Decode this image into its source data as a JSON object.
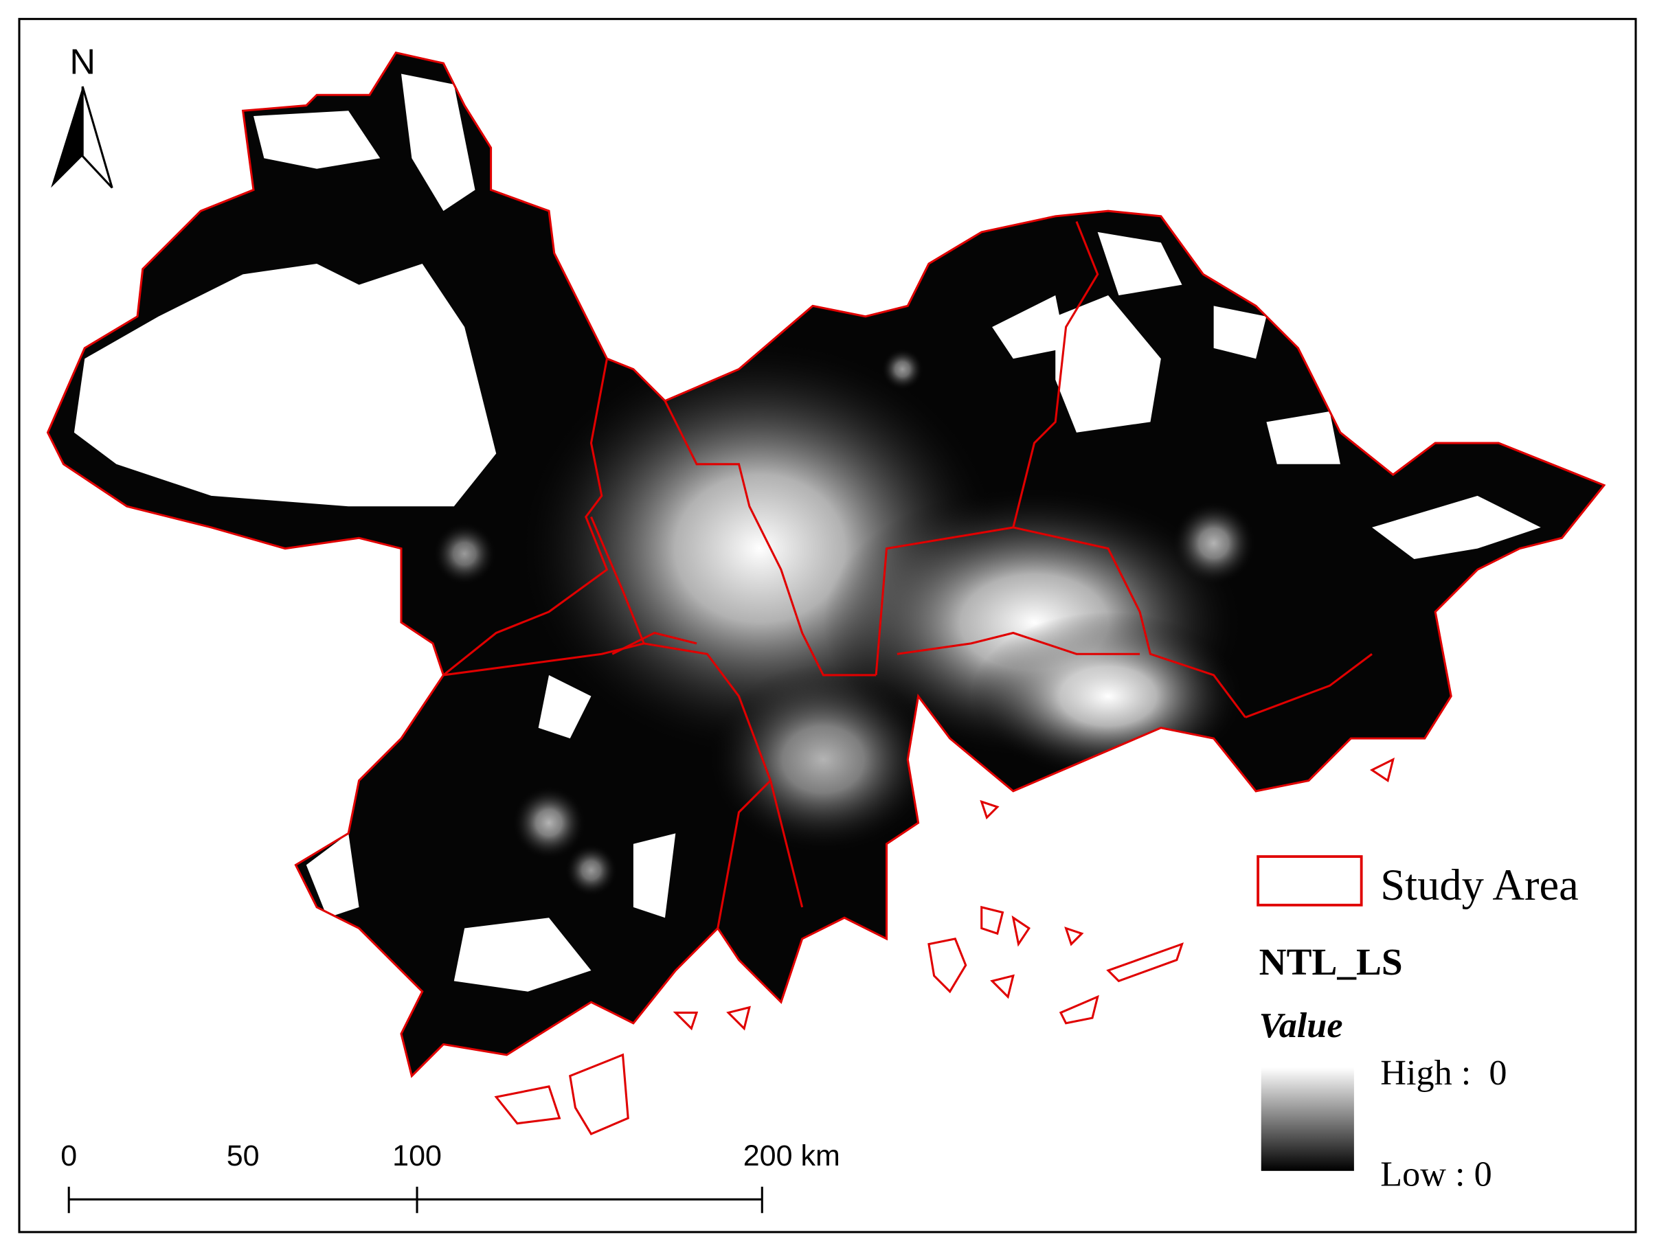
{
  "north_arrow": {
    "label": "N"
  },
  "scale_bar": {
    "labels": [
      "0",
      "50",
      "100",
      "200 km"
    ]
  },
  "legend": {
    "boundary_label": "Study Area",
    "layer_title": "NTL_LS",
    "field_title": "Value",
    "high_label": "High :  0",
    "low_label": "Low : 0"
  }
}
